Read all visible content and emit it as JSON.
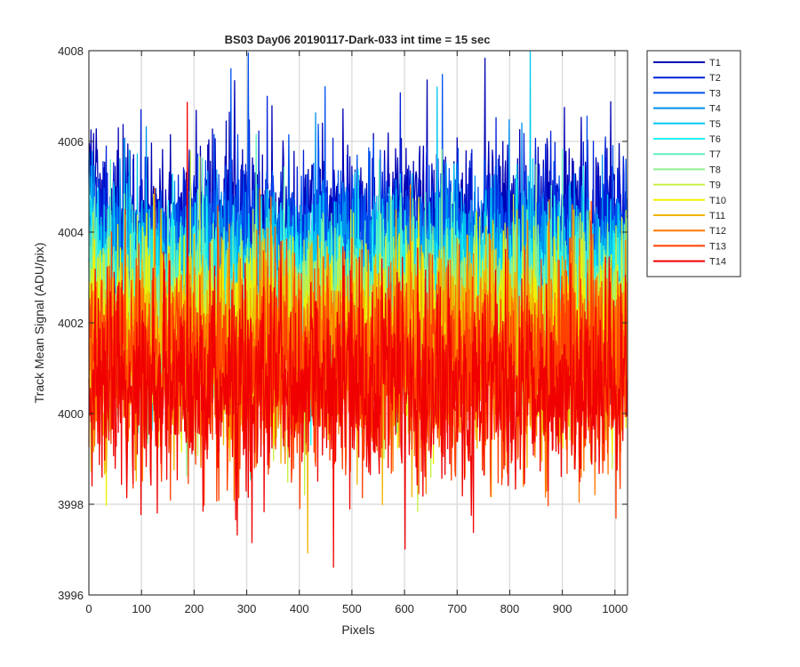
{
  "chart_data": {
    "type": "line",
    "title": "BS03 Day06 20190117-Dark-033 int time = 15 sec",
    "xlabel": "Pixels",
    "ylabel": "Track Mean Signal (ADU/pix)",
    "xlim": [
      0,
      1024
    ],
    "ylim": [
      3996,
      4008
    ],
    "xticks": [
      0,
      100,
      200,
      300,
      400,
      500,
      600,
      700,
      800,
      900,
      1000
    ],
    "yticks": [
      3996,
      3998,
      4000,
      4002,
      4004,
      4006,
      4008
    ],
    "grid": true,
    "legend_position": "outside-top-right",
    "points_per_series": 1024,
    "series": [
      {
        "name": "T1",
        "color": "#0000b4",
        "mean": 4004.3,
        "amplitude": 0.85
      },
      {
        "name": "T2",
        "color": "#0020d8",
        "mean": 4003.9,
        "amplitude": 0.85
      },
      {
        "name": "T3",
        "color": "#0050f0",
        "mean": 4003.6,
        "amplitude": 0.85
      },
      {
        "name": "T4",
        "color": "#0090f0",
        "mean": 4003.3,
        "amplitude": 0.85
      },
      {
        "name": "T5",
        "color": "#00c8f0",
        "mean": 4003.0,
        "amplitude": 0.9
      },
      {
        "name": "T6",
        "color": "#20f0f0",
        "mean": 4002.7,
        "amplitude": 0.9
      },
      {
        "name": "T7",
        "color": "#60f0c0",
        "mean": 4002.4,
        "amplitude": 0.9
      },
      {
        "name": "T8",
        "color": "#90f090",
        "mean": 4002.1,
        "amplitude": 0.95
      },
      {
        "name": "T9",
        "color": "#c8f040",
        "mean": 4001.9,
        "amplitude": 1.0
      },
      {
        "name": "T10",
        "color": "#f0f000",
        "mean": 4001.7,
        "amplitude": 1.0
      },
      {
        "name": "T11",
        "color": "#f0b400",
        "mean": 4001.5,
        "amplitude": 1.05
      },
      {
        "name": "T12",
        "color": "#ff7800",
        "mean": 4001.3,
        "amplitude": 1.1
      },
      {
        "name": "T13",
        "color": "#ff4000",
        "mean": 4001.0,
        "amplitude": 1.1
      },
      {
        "name": "T14",
        "color": "#f00000",
        "mean": 4000.6,
        "amplitude": 1.15
      }
    ]
  }
}
